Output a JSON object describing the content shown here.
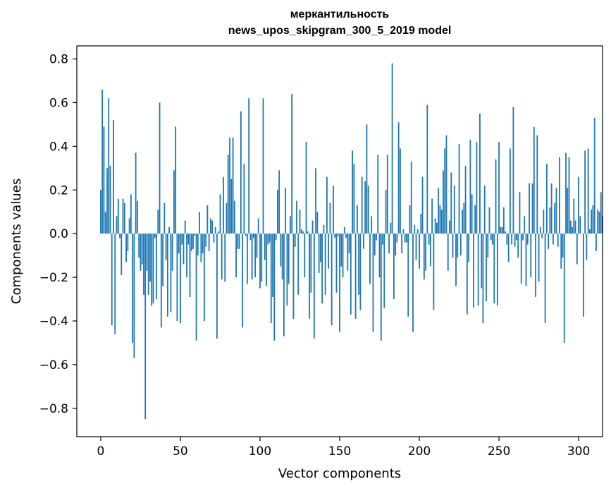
{
  "chart_data": {
    "type": "bar",
    "title_lines": [
      "меркантильность",
      "news_upos_skipgram_300_5_2019 model"
    ],
    "xlabel": "Vector components",
    "ylabel": "Components values",
    "xlim": [
      -15,
      315
    ],
    "ylim": [
      -0.93,
      0.86
    ],
    "xticks": [
      0,
      50,
      100,
      150,
      200,
      250,
      300
    ],
    "xtick_labels": [
      "0",
      "50",
      "100",
      "150",
      "200",
      "250",
      "300"
    ],
    "yticks": [
      -0.8,
      -0.6,
      -0.4,
      -0.2,
      0.0,
      0.2,
      0.4,
      0.6,
      0.8
    ],
    "ytick_labels": [
      "−0.8",
      "−0.6",
      "−0.4",
      "−0.2",
      "0.0",
      "0.2",
      "0.4",
      "0.6",
      "0.8"
    ],
    "bar_color": "#1f77b4",
    "series": [
      {
        "x_start": 0,
        "values": [
          0.2,
          0.66,
          0.49,
          0.1,
          0.3,
          0.62,
          0.31,
          -0.42,
          0.52,
          -0.46,
          0.08,
          0.16,
          -0.02,
          -0.19,
          0.16,
          0.14,
          -0.13,
          -0.08,
          0.07,
          0.18,
          -0.5,
          -0.57,
          0.37,
          0.15,
          -0.11,
          -0.17,
          -0.14,
          -0.28,
          -0.85,
          -0.17,
          -0.28,
          -0.22,
          -0.33,
          -0.32,
          -0.02,
          -0.3,
          0.11,
          0.6,
          -0.43,
          -0.24,
          0.14,
          -0.12,
          -0.38,
          0.03,
          -0.36,
          -0.17,
          0.29,
          0.49,
          -0.4,
          -0.09,
          -0.41,
          -0.05,
          -0.14,
          0.06,
          -0.2,
          -0.05,
          -0.29,
          -0.08,
          -0.07,
          -0.01,
          -0.49,
          -0.1,
          0.1,
          -0.13,
          -0.09,
          -0.4,
          -0.06,
          0.13,
          -0.08,
          0.07,
          0.06,
          -0.04,
          0.03,
          -0.48,
          0.01,
          0.18,
          -0.21,
          0.26,
          -0.22,
          0.14,
          0.36,
          0.44,
          0.25,
          0.44,
          0.15,
          -0.2,
          -0.07,
          -0.07,
          0.56,
          -0.43,
          0.32,
          -0.01,
          -0.23,
          0.62,
          -0.03,
          -0.21,
          -0.02,
          -0.2,
          -0.11,
          0.07,
          -0.25,
          -0.22,
          0.62,
          -0.12,
          -0.24,
          -0.05,
          -0.04,
          -0.41,
          -0.29,
          -0.49,
          -0.03,
          0.2,
          0.29,
          -0.15,
          -0.21,
          -0.47,
          0.21,
          -0.33,
          -0.23,
          0.08,
          0.64,
          -0.39,
          -0.06,
          0.15,
          -0.28,
          0.11,
          0.02,
          0.01,
          -0.2,
          0.42,
          0.01,
          -0.39,
          -0.27,
          0.06,
          -0.48,
          0.3,
          0.1,
          -0.18,
          -0.13,
          -0.32,
          0.04,
          -0.28,
          0.26,
          -0.16,
          0.14,
          -0.42,
          0.22,
          -0.02,
          -0.27,
          -0.01,
          -0.45,
          -0.15,
          -0.2,
          0.03,
          -0.02,
          -0.17,
          -0.09,
          -0.37,
          0.38,
          0.32,
          -0.39,
          0.13,
          -0.28,
          -0.35,
          0.26,
          -0.07,
          0.24,
          0.5,
          0.22,
          -0.23,
          0.08,
          -0.45,
          -0.1,
          -0.03,
          0.36,
          -0.2,
          -0.49,
          -0.05,
          -0.34,
          0.2,
          0.36,
          -0.09,
          0.05,
          0.78,
          -0.3,
          -0.1,
          -0.04,
          0.51,
          0.39,
          -0.09,
          0.02,
          -0.04,
          -0.04,
          -0.38,
          0.13,
          0.33,
          -0.45,
          0.04,
          -0.12,
          0.02,
          -0.16,
          0.09,
          0.26,
          -0.21,
          -0.17,
          0.59,
          -0.05,
          -0.15,
          0.16,
          -0.35,
          0.07,
          0.05,
          0.21,
          0.13,
          0.11,
          0.29,
          0.39,
          0.45,
          -0.17,
          0.06,
          0.28,
          -0.11,
          0.22,
          -0.24,
          -0.11,
          0.41,
          -0.1,
          0.11,
          0.14,
          0.31,
          -0.37,
          -0.13,
          0.43,
          0.18,
          -0.34,
          0.13,
          0.42,
          -0.33,
          0.55,
          -0.25,
          -0.41,
          0.22,
          -0.31,
          -0.11,
          0.12,
          -0.03,
          -0.05,
          -0.32,
          0.34,
          -0.33,
          0.42,
          0.03,
          0.03,
          0.12,
          0.01,
          -0.05,
          -0.13,
          0.39,
          -0.05,
          0.58,
          -0.06,
          -0.03,
          -0.11,
          0.19,
          -0.23,
          -0.03,
          0.08,
          -0.24,
          -0.05,
          0.23,
          -0.2,
          0.23,
          0.49,
          -0.29,
          0.45,
          -0.22,
          0.03,
          -0.02,
          0.11,
          -0.41,
          0.32,
          -0.07,
          0.12,
          0.23,
          -0.05,
          0.14,
          0.21,
          -0.06,
          0.35,
          -0.16,
          -0.11,
          -0.5,
          0.37,
          0.21,
          0.35,
          0.06,
          0.03,
          0.16,
          0.06,
          -0.14,
          0.26,
          0.08,
          0.0,
          -0.38,
          0.38,
          -0.12,
          0.39,
          0.02,
          0.11,
          0.13,
          0.53,
          -0.08,
          0.11,
          0.1,
          0.19,
          0.08
        ]
      }
    ]
  }
}
